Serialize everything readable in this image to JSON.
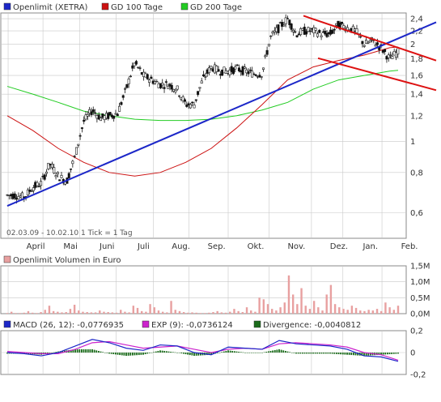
{
  "colors": {
    "price": "#111111",
    "gd100": "#cc1111",
    "gd200": "#22cc22",
    "trend_up": "#1c27c8",
    "trend_down": "#dd1111",
    "volume": "#e8a0a0",
    "macd": "#1c27c8",
    "exp": "#cc22cc",
    "divergence": "#1a6b1a",
    "grid": "#c8c8c8"
  },
  "chart_data": [
    {
      "type": "line",
      "panel": "price",
      "legend": [
        "Openlimit (XETRA)",
        "GD 100 Tage",
        "GD 200 Tage"
      ],
      "annotation": "02.03.09 - 10.02.10   1 Tick = 1 Tag",
      "y_scale": "log",
      "ylim": [
        0.5,
        2.5
      ],
      "ytick_labels": [
        "2,4",
        "2,2",
        "2",
        "1,8",
        "1,6",
        "1,4",
        "1,2",
        "1",
        "0,8",
        "0,6"
      ],
      "ytick_values": [
        2.4,
        2.2,
        2.0,
        1.8,
        1.6,
        1.4,
        1.2,
        1.0,
        0.8,
        0.6
      ],
      "xtick_labels": [
        "April",
        "Mai",
        "Juni",
        "Juli",
        "Aug.",
        "Sep.",
        "Okt.",
        "Nov.",
        "Dez.",
        "Jan.",
        "Feb."
      ],
      "xtick_positions": [
        1,
        42,
        85,
        128,
        172,
        214,
        260,
        308,
        358,
        395,
        441
      ],
      "grid": true,
      "series": [
        {
          "name": "Openlimit (XETRA)",
          "x": [
            0,
            10,
            20,
            30,
            40,
            50,
            60,
            70,
            80,
            90,
            100,
            110,
            120,
            130,
            140,
            150,
            160,
            170,
            180,
            190,
            200,
            210,
            220,
            230,
            240,
            250,
            260,
            270,
            280,
            290,
            300,
            310,
            320,
            330,
            340,
            350,
            360,
            370,
            380,
            390,
            400,
            410,
            420,
            430,
            440,
            450,
            460
          ],
          "values": [
            0.68,
            0.68,
            0.67,
            0.72,
            0.74,
            0.85,
            0.78,
            0.75,
            0.9,
            1.15,
            1.25,
            1.18,
            1.2,
            1.22,
            1.45,
            1.75,
            1.6,
            1.55,
            1.5,
            1.5,
            1.45,
            1.3,
            1.3,
            1.55,
            1.7,
            1.65,
            1.65,
            1.68,
            1.65,
            1.62,
            1.62,
            2.1,
            2.25,
            2.4,
            2.15,
            2.2,
            2.2,
            2.15,
            2.15,
            2.3,
            2.25,
            2.2,
            2.0,
            2.05,
            1.95,
            1.8,
            1.9
          ]
        },
        {
          "name": "GD 100 Tage",
          "x": [
            0,
            30,
            60,
            90,
            120,
            150,
            180,
            210,
            240,
            270,
            300,
            330,
            360,
            390,
            420,
            450,
            460
          ],
          "values": [
            1.2,
            1.08,
            0.95,
            0.86,
            0.8,
            0.78,
            0.8,
            0.86,
            0.95,
            1.1,
            1.3,
            1.55,
            1.7,
            1.78,
            1.85,
            1.95,
            1.96
          ]
        },
        {
          "name": "GD 200 Tage",
          "x": [
            0,
            30,
            60,
            90,
            120,
            150,
            180,
            210,
            240,
            270,
            300,
            330,
            360,
            390,
            420,
            450,
            460
          ],
          "values": [
            1.48,
            1.4,
            1.32,
            1.24,
            1.2,
            1.17,
            1.16,
            1.16,
            1.17,
            1.2,
            1.25,
            1.32,
            1.45,
            1.55,
            1.6,
            1.65,
            1.66
          ]
        }
      ],
      "trendlines": [
        {
          "kind": "support",
          "x": [
            9,
            539
          ],
          "values": [
            0.63,
            2.34
          ]
        },
        {
          "kind": "resistance-upper",
          "x": [
            375,
            539
          ],
          "values": [
            2.45,
            1.78
          ]
        },
        {
          "kind": "resistance-lower",
          "x": [
            393,
            539
          ],
          "values": [
            1.81,
            1.44
          ]
        }
      ]
    },
    {
      "type": "bar",
      "panel": "volume",
      "legend": [
        "Openlimit Volumen in Euro"
      ],
      "ylim": [
        0,
        1.5
      ],
      "ytick_labels": [
        "1,5M",
        "1,0M",
        "0,5M",
        "0,0M"
      ],
      "ytick_values": [
        1.5,
        1.0,
        0.5,
        0.0
      ],
      "values_millions": [
        0.02,
        0.06,
        0.02,
        0.02,
        0.03,
        0.08,
        0.03,
        0.02,
        0.05,
        0.12,
        0.25,
        0.08,
        0.06,
        0.04,
        0.05,
        0.15,
        0.28,
        0.1,
        0.06,
        0.05,
        0.04,
        0.04,
        0.1,
        0.06,
        0.05,
        0.04,
        0.03,
        0.12,
        0.06,
        0.04,
        0.25,
        0.18,
        0.08,
        0.06,
        0.3,
        0.2,
        0.1,
        0.06,
        0.04,
        0.4,
        0.12,
        0.08,
        0.05,
        0.03,
        0.04,
        0.03,
        0.02,
        0.02,
        0.03,
        0.05,
        0.08,
        0.04,
        0.03,
        0.06,
        0.15,
        0.08,
        0.05,
        0.2,
        0.1,
        0.06,
        0.5,
        0.45,
        0.3,
        0.15,
        0.1,
        0.2,
        0.35,
        1.2,
        0.6,
        0.3,
        0.8,
        0.25,
        0.15,
        0.4,
        0.2,
        0.1,
        0.6,
        0.9,
        0.3,
        0.2,
        0.15,
        0.12,
        0.25,
        0.18,
        0.1,
        0.08,
        0.12,
        0.1,
        0.15,
        0.08,
        0.35,
        0.2,
        0.12,
        0.25
      ]
    },
    {
      "type": "line",
      "panel": "macd",
      "legend": [
        "MACD (26, 12): -0,0776935",
        "EXP (9): -0,0736124",
        "Divergence: -0,0040812"
      ],
      "ylim": [
        -0.2,
        0.2
      ],
      "ytick_labels": [
        "0,2",
        "0",
        "-0,2"
      ],
      "ytick_values": [
        0.2,
        0.0,
        -0.2
      ],
      "x": [
        0,
        20,
        40,
        60,
        80,
        100,
        120,
        140,
        160,
        180,
        200,
        220,
        240,
        260,
        280,
        300,
        320,
        340,
        360,
        380,
        400,
        420,
        440,
        460
      ],
      "series": [
        {
          "name": "MACD (26, 12)",
          "values": [
            0.0,
            -0.01,
            -0.03,
            0.0,
            0.06,
            0.12,
            0.09,
            0.04,
            0.02,
            0.07,
            0.06,
            0.0,
            -0.02,
            0.05,
            0.04,
            0.03,
            0.11,
            0.08,
            0.07,
            0.06,
            0.03,
            -0.03,
            -0.04,
            -0.08
          ]
        },
        {
          "name": "EXP (9)",
          "values": [
            0.01,
            0.0,
            -0.01,
            -0.01,
            0.03,
            0.09,
            0.1,
            0.07,
            0.04,
            0.05,
            0.06,
            0.03,
            0.0,
            0.03,
            0.04,
            0.03,
            0.08,
            0.09,
            0.08,
            0.07,
            0.05,
            0.0,
            -0.02,
            -0.07
          ]
        },
        {
          "name": "Divergence",
          "values": [
            -0.01,
            -0.01,
            -0.02,
            0.01,
            0.03,
            0.03,
            -0.01,
            -0.03,
            -0.02,
            0.02,
            0.0,
            -0.03,
            -0.02,
            0.02,
            0.0,
            0.0,
            0.03,
            -0.01,
            -0.01,
            -0.01,
            -0.02,
            -0.03,
            -0.02,
            -0.01
          ]
        }
      ]
    }
  ]
}
